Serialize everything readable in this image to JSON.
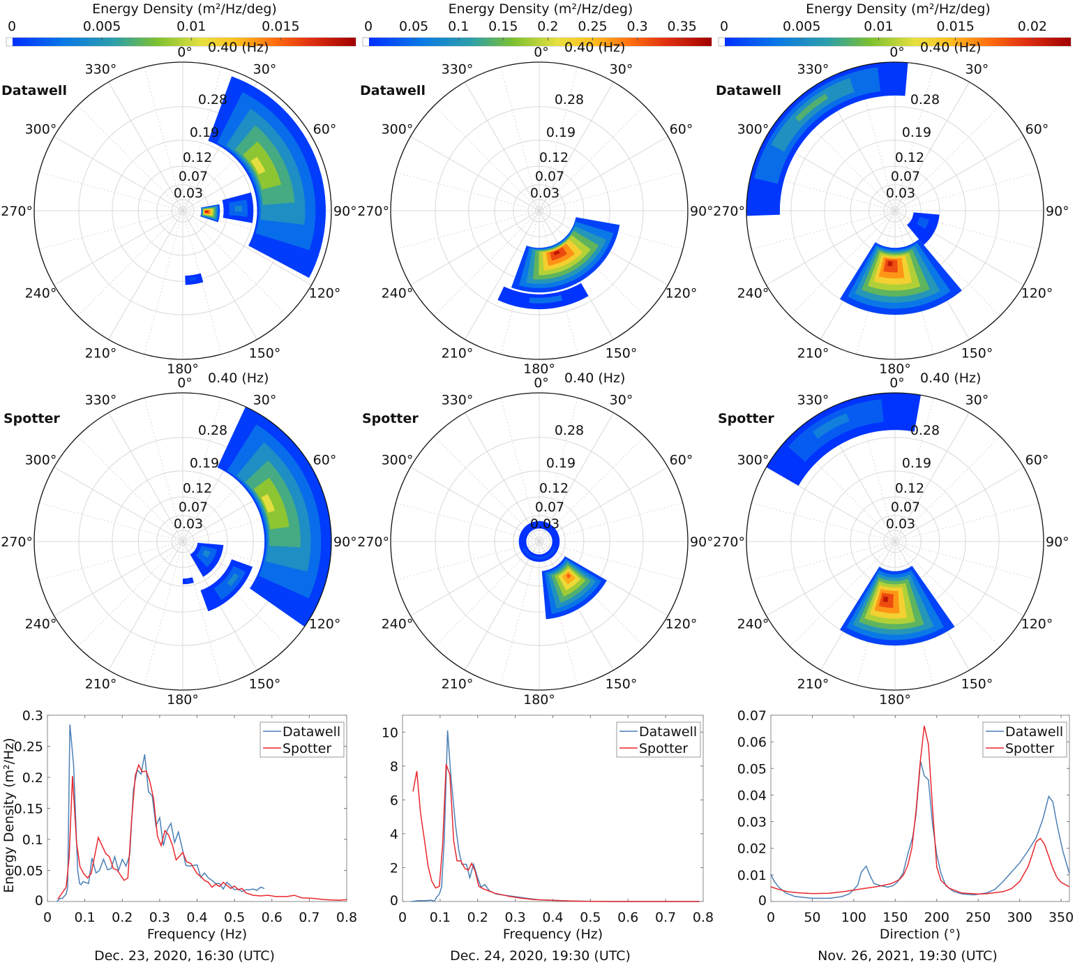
{
  "colorbar_title": "Energy Density (m²/Hz/deg)",
  "polar_axes": {
    "angle_labels": [
      "0°",
      "30°",
      "60°",
      "90°",
      "120°",
      "150°",
      "180°",
      "210°",
      "240°",
      "270°",
      "300°",
      "330°"
    ],
    "angles": [
      0,
      30,
      60,
      90,
      120,
      150,
      180,
      210,
      240,
      270,
      300,
      330
    ],
    "freq_rings": [
      0.03,
      0.07,
      0.12,
      0.19,
      0.28,
      0.4
    ],
    "freq_ring_labels": [
      "0.03",
      "0.07",
      "0.12",
      "0.19",
      "0.28",
      "0.40 (Hz)"
    ],
    "rmax": 0.4
  },
  "row_labels": [
    "Datawell",
    "Spotter"
  ],
  "legend": {
    "datawell": "Datawell",
    "spotter": "Spotter"
  },
  "colors": {
    "datawell": "#4a7fb5",
    "spotter": "#e8262b",
    "white_level": "#ffffff"
  },
  "chart_data": [
    {
      "type": "heatmap",
      "subtype": "polar-directional-spectrum",
      "row": "Datawell",
      "column": 0,
      "colorbar": {
        "ticks": [
          0,
          0.005,
          0.01,
          0.015
        ],
        "tick_labels": [
          "0",
          "0.005",
          "0.01",
          "0.015"
        ],
        "max": 0.0192
      },
      "blobs": [
        {
          "dir": [
            20,
            118
          ],
          "freq": [
            0.2,
            0.385
          ],
          "peak_dir": 58,
          "peak_freq": 0.23,
          "peak": 0.0105
        },
        {
          "dir": [
            75,
            100
          ],
          "freq": [
            0.11,
            0.19
          ],
          "peak_dir": 88,
          "peak_freq": 0.15,
          "peak": 0.004
        },
        {
          "dir": [
            80,
            108
          ],
          "freq": [
            0.05,
            0.1
          ],
          "peak_dir": 92,
          "peak_freq": 0.062,
          "peak": 0.019
        },
        {
          "dir": [
            164,
            178
          ],
          "freq": [
            0.175,
            0.2
          ],
          "peak_dir": 172,
          "peak_freq": 0.185,
          "peak": 0.001
        }
      ]
    },
    {
      "type": "heatmap",
      "subtype": "polar-directional-spectrum",
      "row": "Datawell",
      "column": 1,
      "colorbar": {
        "ticks": [
          0,
          0.05,
          0.1,
          0.15,
          0.2,
          0.25,
          0.3,
          0.35
        ],
        "tick_labels": [
          "0",
          "0.05",
          "0.1",
          "0.15",
          "0.2",
          "0.25",
          "0.3",
          "0.35"
        ],
        "max": 0.383
      },
      "blobs": [
        {
          "dir": [
            100,
            200
          ],
          "freq": [
            0.1,
            0.22
          ],
          "peak_dir": 158,
          "peak_freq": 0.12,
          "peak": 0.36
        },
        {
          "dir": [
            150,
            205
          ],
          "freq": [
            0.225,
            0.265
          ],
          "peak_dir": 175,
          "peak_freq": 0.24,
          "peak": 0.05
        }
      ]
    },
    {
      "type": "heatmap",
      "subtype": "polar-directional-spectrum",
      "row": "Datawell",
      "column": 2,
      "colorbar": {
        "ticks": [
          0,
          0.005,
          0.01,
          0.015,
          0.02
        ],
        "tick_labels": [
          "0",
          "0.005",
          "0.01",
          "0.015",
          "0.02"
        ],
        "max": 0.0225
      },
      "blobs": [
        {
          "dir": [
            268,
            365
          ],
          "freq": [
            0.31,
            0.4
          ],
          "peak_dir": 322,
          "peak_freq": 0.36,
          "peak": 0.008
        },
        {
          "dir": [
            140,
            212
          ],
          "freq": [
            0.1,
            0.28
          ],
          "peak_dir": 186,
          "peak_freq": 0.14,
          "peak": 0.021
        },
        {
          "dir": [
            95,
            140
          ],
          "freq": [
            0.05,
            0.12
          ],
          "peak_dir": 110,
          "peak_freq": 0.08,
          "peak": 0.002
        }
      ]
    },
    {
      "type": "heatmap",
      "subtype": "polar-directional-spectrum",
      "row": "Spotter",
      "column": 0,
      "blobs": [
        {
          "dir": [
            25,
            125
          ],
          "freq": [
            0.22,
            0.4
          ],
          "peak_dir": 65,
          "peak_freq": 0.245,
          "peak": 0.0105
        },
        {
          "dir": [
            95,
            150
          ],
          "freq": [
            0.04,
            0.11
          ],
          "peak_dir": 115,
          "peak_freq": 0.07,
          "peak": 0.004
        },
        {
          "dir": [
            110,
            160
          ],
          "freq": [
            0.14,
            0.2
          ],
          "peak_dir": 125,
          "peak_freq": 0.17,
          "peak": 0.004
        },
        {
          "dir": [
            165,
            180
          ],
          "freq": [
            0.1,
            0.115
          ],
          "peak_dir": 172,
          "peak_freq": 0.107,
          "peak": 0.001
        }
      ]
    },
    {
      "type": "heatmap",
      "subtype": "polar-directional-spectrum",
      "row": "Spotter",
      "column": 1,
      "blobs": [
        {
          "dir": [
            0,
            359.9
          ],
          "freq": [
            0.035,
            0.055
          ],
          "peak_dir": 180,
          "peak_freq": 0.045,
          "peak": 0.02
        },
        {
          "dir": [
            120,
            175
          ],
          "freq": [
            0.08,
            0.21
          ],
          "peak_dir": 139,
          "peak_freq": 0.12,
          "peak": 0.3
        }
      ]
    },
    {
      "type": "heatmap",
      "subtype": "polar-directional-spectrum",
      "row": "Spotter",
      "column": 2,
      "blobs": [
        {
          "dir": [
            300,
            370
          ],
          "freq": [
            0.3,
            0.4
          ],
          "peak_dir": 330,
          "peak_freq": 0.36,
          "peak": 0.004
        },
        {
          "dir": [
            145,
            212
          ],
          "freq": [
            0.08,
            0.28
          ],
          "peak_dir": 190,
          "peak_freq": 0.156,
          "peak": 0.021
        }
      ]
    },
    {
      "type": "line",
      "column": 0,
      "title": "Dec. 23, 2020, 16:30 (UTC)",
      "xlabel": "Frequency (Hz)",
      "ylabel": "Energy Density (m²/Hz)",
      "xlim": [
        0,
        0.8
      ],
      "ylim": [
        0,
        0.3
      ],
      "xticks": [
        0,
        0.1,
        0.2,
        0.3,
        0.4,
        0.5,
        0.6,
        0.7,
        0.8
      ],
      "xtick_labels": [
        "0",
        "0.1",
        "0.2",
        "0.3",
        "0.4",
        "0.5",
        "0.6",
        "0.7",
        "0.8"
      ],
      "yticks": [
        0,
        0.05,
        0.1,
        0.15,
        0.2,
        0.25,
        0.3
      ],
      "ytick_labels": [
        "0",
        "0.05",
        "0.1",
        "0.15",
        "0.2",
        "0.25",
        "0.3"
      ],
      "legend_position": "top-right",
      "series": [
        {
          "name": "Datawell",
          "x": [
            0.025,
            0.034,
            0.04,
            0.05,
            0.054,
            0.06,
            0.07,
            0.081,
            0.086,
            0.09,
            0.095,
            0.11,
            0.119,
            0.13,
            0.139,
            0.15,
            0.161,
            0.17,
            0.18,
            0.19,
            0.2,
            0.21,
            0.22,
            0.23,
            0.24,
            0.25,
            0.26,
            0.27,
            0.28,
            0.29,
            0.3,
            0.31,
            0.32,
            0.33,
            0.34,
            0.35,
            0.36,
            0.37,
            0.38,
            0.39,
            0.4,
            0.41,
            0.42,
            0.43,
            0.44,
            0.45,
            0.46,
            0.47,
            0.48,
            0.49,
            0.5,
            0.51,
            0.52,
            0.53,
            0.54,
            0.55,
            0.56,
            0.57,
            0.58
          ],
          "y": [
            0,
            0.005,
            0.005,
            0.012,
            0.023,
            0.285,
            0.22,
            0.05,
            0.029,
            0.027,
            0.032,
            0.029,
            0.07,
            0.046,
            0.05,
            0.068,
            0.051,
            0.053,
            0.072,
            0.05,
            0.068,
            0.057,
            0.075,
            0.18,
            0.212,
            0.205,
            0.237,
            0.177,
            0.17,
            0.122,
            0.135,
            0.09,
            0.115,
            0.126,
            0.095,
            0.112,
            0.087,
            0.058,
            0.057,
            0.058,
            0.059,
            0.039,
            0.046,
            0.038,
            0.034,
            0.029,
            0.029,
            0.02,
            0.031,
            0.025,
            0.019,
            0.02,
            0.016,
            0.019,
            0.019,
            0.02,
            0.018,
            0.023,
            0.021
          ]
        },
        {
          "name": "Spotter",
          "x": [
            0.028,
            0.05,
            0.058,
            0.067,
            0.078,
            0.087,
            0.097,
            0.107,
            0.117,
            0.136,
            0.156,
            0.166,
            0.176,
            0.186,
            0.205,
            0.215,
            0.225,
            0.235,
            0.244,
            0.253,
            0.264,
            0.274,
            0.284,
            0.294,
            0.304,
            0.314,
            0.324,
            0.334,
            0.344,
            0.362,
            0.372,
            0.384,
            0.4,
            0.41,
            0.42,
            0.43,
            0.44,
            0.45,
            0.46,
            0.47,
            0.48,
            0.49,
            0.5,
            0.51,
            0.52,
            0.53,
            0.55,
            0.57,
            0.59,
            0.61,
            0.64,
            0.66,
            0.68,
            0.71,
            0.74,
            0.78,
            0.8
          ],
          "y": [
            0.004,
            0.023,
            0.07,
            0.202,
            0.094,
            0.056,
            0.045,
            0.038,
            0.045,
            0.103,
            0.077,
            0.072,
            0.053,
            0.051,
            0.034,
            0.038,
            0.132,
            0.203,
            0.22,
            0.209,
            0.21,
            0.193,
            0.165,
            0.105,
            0.09,
            0.114,
            0.107,
            0.091,
            0.067,
            0.079,
            0.064,
            0.061,
            0.045,
            0.04,
            0.034,
            0.031,
            0.023,
            0.028,
            0.024,
            0.031,
            0.026,
            0.021,
            0.025,
            0.019,
            0.021,
            0.014,
            0.01,
            0.009,
            0.01,
            0.008,
            0.008,
            0.01,
            0.006,
            0.005,
            0.003,
            0.002,
            0.003
          ]
        }
      ]
    },
    {
      "type": "line",
      "column": 1,
      "title": "Dec. 24, 2020, 19:30 (UTC)",
      "xlabel": "Frequency (Hz)",
      "ylabel": "",
      "xlim": [
        0,
        0.8
      ],
      "ylim": [
        0,
        11
      ],
      "xticks": [
        0,
        0.1,
        0.2,
        0.3,
        0.4,
        0.5,
        0.6,
        0.7,
        0.8
      ],
      "xtick_labels": [
        "0",
        "0.1",
        "0.2",
        "0.3",
        "0.4",
        "0.5",
        "0.6",
        "0.7",
        "0.8"
      ],
      "yticks": [
        0,
        2,
        4,
        6,
        8,
        10
      ],
      "ytick_labels": [
        "0",
        "2",
        "4",
        "6",
        "8",
        "10"
      ],
      "legend_position": "top-right",
      "series": [
        {
          "name": "Datawell",
          "x": [
            0.024,
            0.042,
            0.06,
            0.076,
            0.085,
            0.09,
            0.098,
            0.104,
            0.111,
            0.12,
            0.129,
            0.141,
            0.15,
            0.158,
            0.17,
            0.179,
            0.189,
            0.199,
            0.209,
            0.219,
            0.231,
            0.249,
            0.271,
            0.296,
            0.327,
            0.364,
            0.4,
            0.45,
            0.51,
            0.6,
            0.7,
            0.79
          ],
          "y": [
            0,
            0.05,
            0.05,
            0.08,
            0.03,
            0.23,
            0.44,
            0.85,
            3.6,
            10.1,
            7.3,
            4.5,
            3.0,
            2.2,
            2.2,
            1.4,
            2.2,
            1.46,
            0.85,
            1.0,
            0.64,
            0.44,
            0.37,
            0.3,
            0.2,
            0.1,
            0.07,
            0.03,
            0.01,
            0,
            0,
            0
          ]
        },
        {
          "name": "Spotter",
          "x": [
            0.028,
            0.038,
            0.048,
            0.058,
            0.068,
            0.078,
            0.088,
            0.098,
            0.107,
            0.116,
            0.126,
            0.136,
            0.145,
            0.155,
            0.166,
            0.175,
            0.184,
            0.193,
            0.203,
            0.215,
            0.228,
            0.246,
            0.265,
            0.284,
            0.314,
            0.351,
            0.389,
            0.426,
            0.48,
            0.57,
            0.79
          ],
          "y": [
            6.5,
            7.7,
            5.2,
            3.7,
            2.1,
            1.2,
            0.8,
            0.9,
            3.4,
            8.1,
            7.5,
            3.6,
            2.4,
            2.4,
            1.95,
            1.85,
            2.25,
            1.8,
            0.9,
            0.75,
            0.64,
            0.48,
            0.4,
            0.3,
            0.2,
            0.11,
            0.08,
            0.04,
            0.01,
            0,
            0
          ]
        }
      ]
    },
    {
      "type": "line",
      "column": 2,
      "title": "Nov. 26, 2021, 19:30 (UTC)",
      "xlabel": "Direction (°)",
      "ylabel": "",
      "xlim": [
        0,
        360
      ],
      "ylim": [
        0,
        0.07
      ],
      "xticks": [
        0,
        50,
        100,
        150,
        200,
        250,
        300,
        350
      ],
      "xtick_labels": [
        "0",
        "50",
        "100",
        "150",
        "200",
        "250",
        "300",
        "350"
      ],
      "yticks": [
        0,
        0.01,
        0.02,
        0.03,
        0.04,
        0.05,
        0.06,
        0.07
      ],
      "ytick_labels": [
        "0",
        "0.01",
        "0.02",
        "0.03",
        "0.04",
        "0.05",
        "0.06",
        "0.07"
      ],
      "legend_position": "top-right",
      "series": [
        {
          "name": "Datawell",
          "x": [
            0,
            4,
            9.5,
            18,
            29,
            49,
            71,
            85,
            94,
            99,
            105,
            109,
            115,
            119.5,
            124.5,
            133,
            141,
            147,
            152.5,
            159.5,
            165,
            171,
            175,
            180.5,
            185,
            190,
            195,
            200,
            205,
            211,
            220,
            231,
            245,
            260,
            270,
            280,
            290,
            300,
            310,
            320,
            328,
            335,
            340,
            345,
            352,
            360
          ],
          "y": [
            0.0102,
            0.0076,
            0.0054,
            0.0032,
            0.0019,
            0.0012,
            0.0012,
            0.0018,
            0.0028,
            0.0041,
            0.0063,
            0.011,
            0.0133,
            0.0098,
            0.0067,
            0.0059,
            0.0054,
            0.0059,
            0.0072,
            0.0107,
            0.0177,
            0.0242,
            0.0326,
            0.0527,
            0.0473,
            0.0457,
            0.029,
            0.0177,
            0.0107,
            0.0059,
            0.0038,
            0.0028,
            0.0025,
            0.0032,
            0.0045,
            0.0075,
            0.011,
            0.0145,
            0.019,
            0.024,
            0.031,
            0.0395,
            0.0375,
            0.029,
            0.019,
            0.0105
          ]
        },
        {
          "name": "Spotter",
          "x": [
            0,
            10,
            20,
            35,
            50,
            70,
            90,
            110,
            130,
            145,
            155,
            160,
            165,
            170,
            175,
            180,
            185,
            190,
            195,
            200,
            205,
            215,
            230,
            250,
            260,
            280,
            290,
            300,
            310,
            315,
            320,
            325,
            330,
            335,
            340,
            345,
            350,
            360
          ],
          "y": [
            0.0055,
            0.0045,
            0.0037,
            0.0032,
            0.003,
            0.0031,
            0.0038,
            0.0048,
            0.0057,
            0.0067,
            0.0082,
            0.01,
            0.0135,
            0.02,
            0.034,
            0.052,
            0.066,
            0.059,
            0.035,
            0.013,
            0.008,
            0.005,
            0.0032,
            0.0028,
            0.0029,
            0.0037,
            0.0048,
            0.0075,
            0.013,
            0.0175,
            0.0225,
            0.0237,
            0.0215,
            0.017,
            0.0125,
            0.009,
            0.0072,
            0.0055
          ]
        }
      ]
    }
  ]
}
